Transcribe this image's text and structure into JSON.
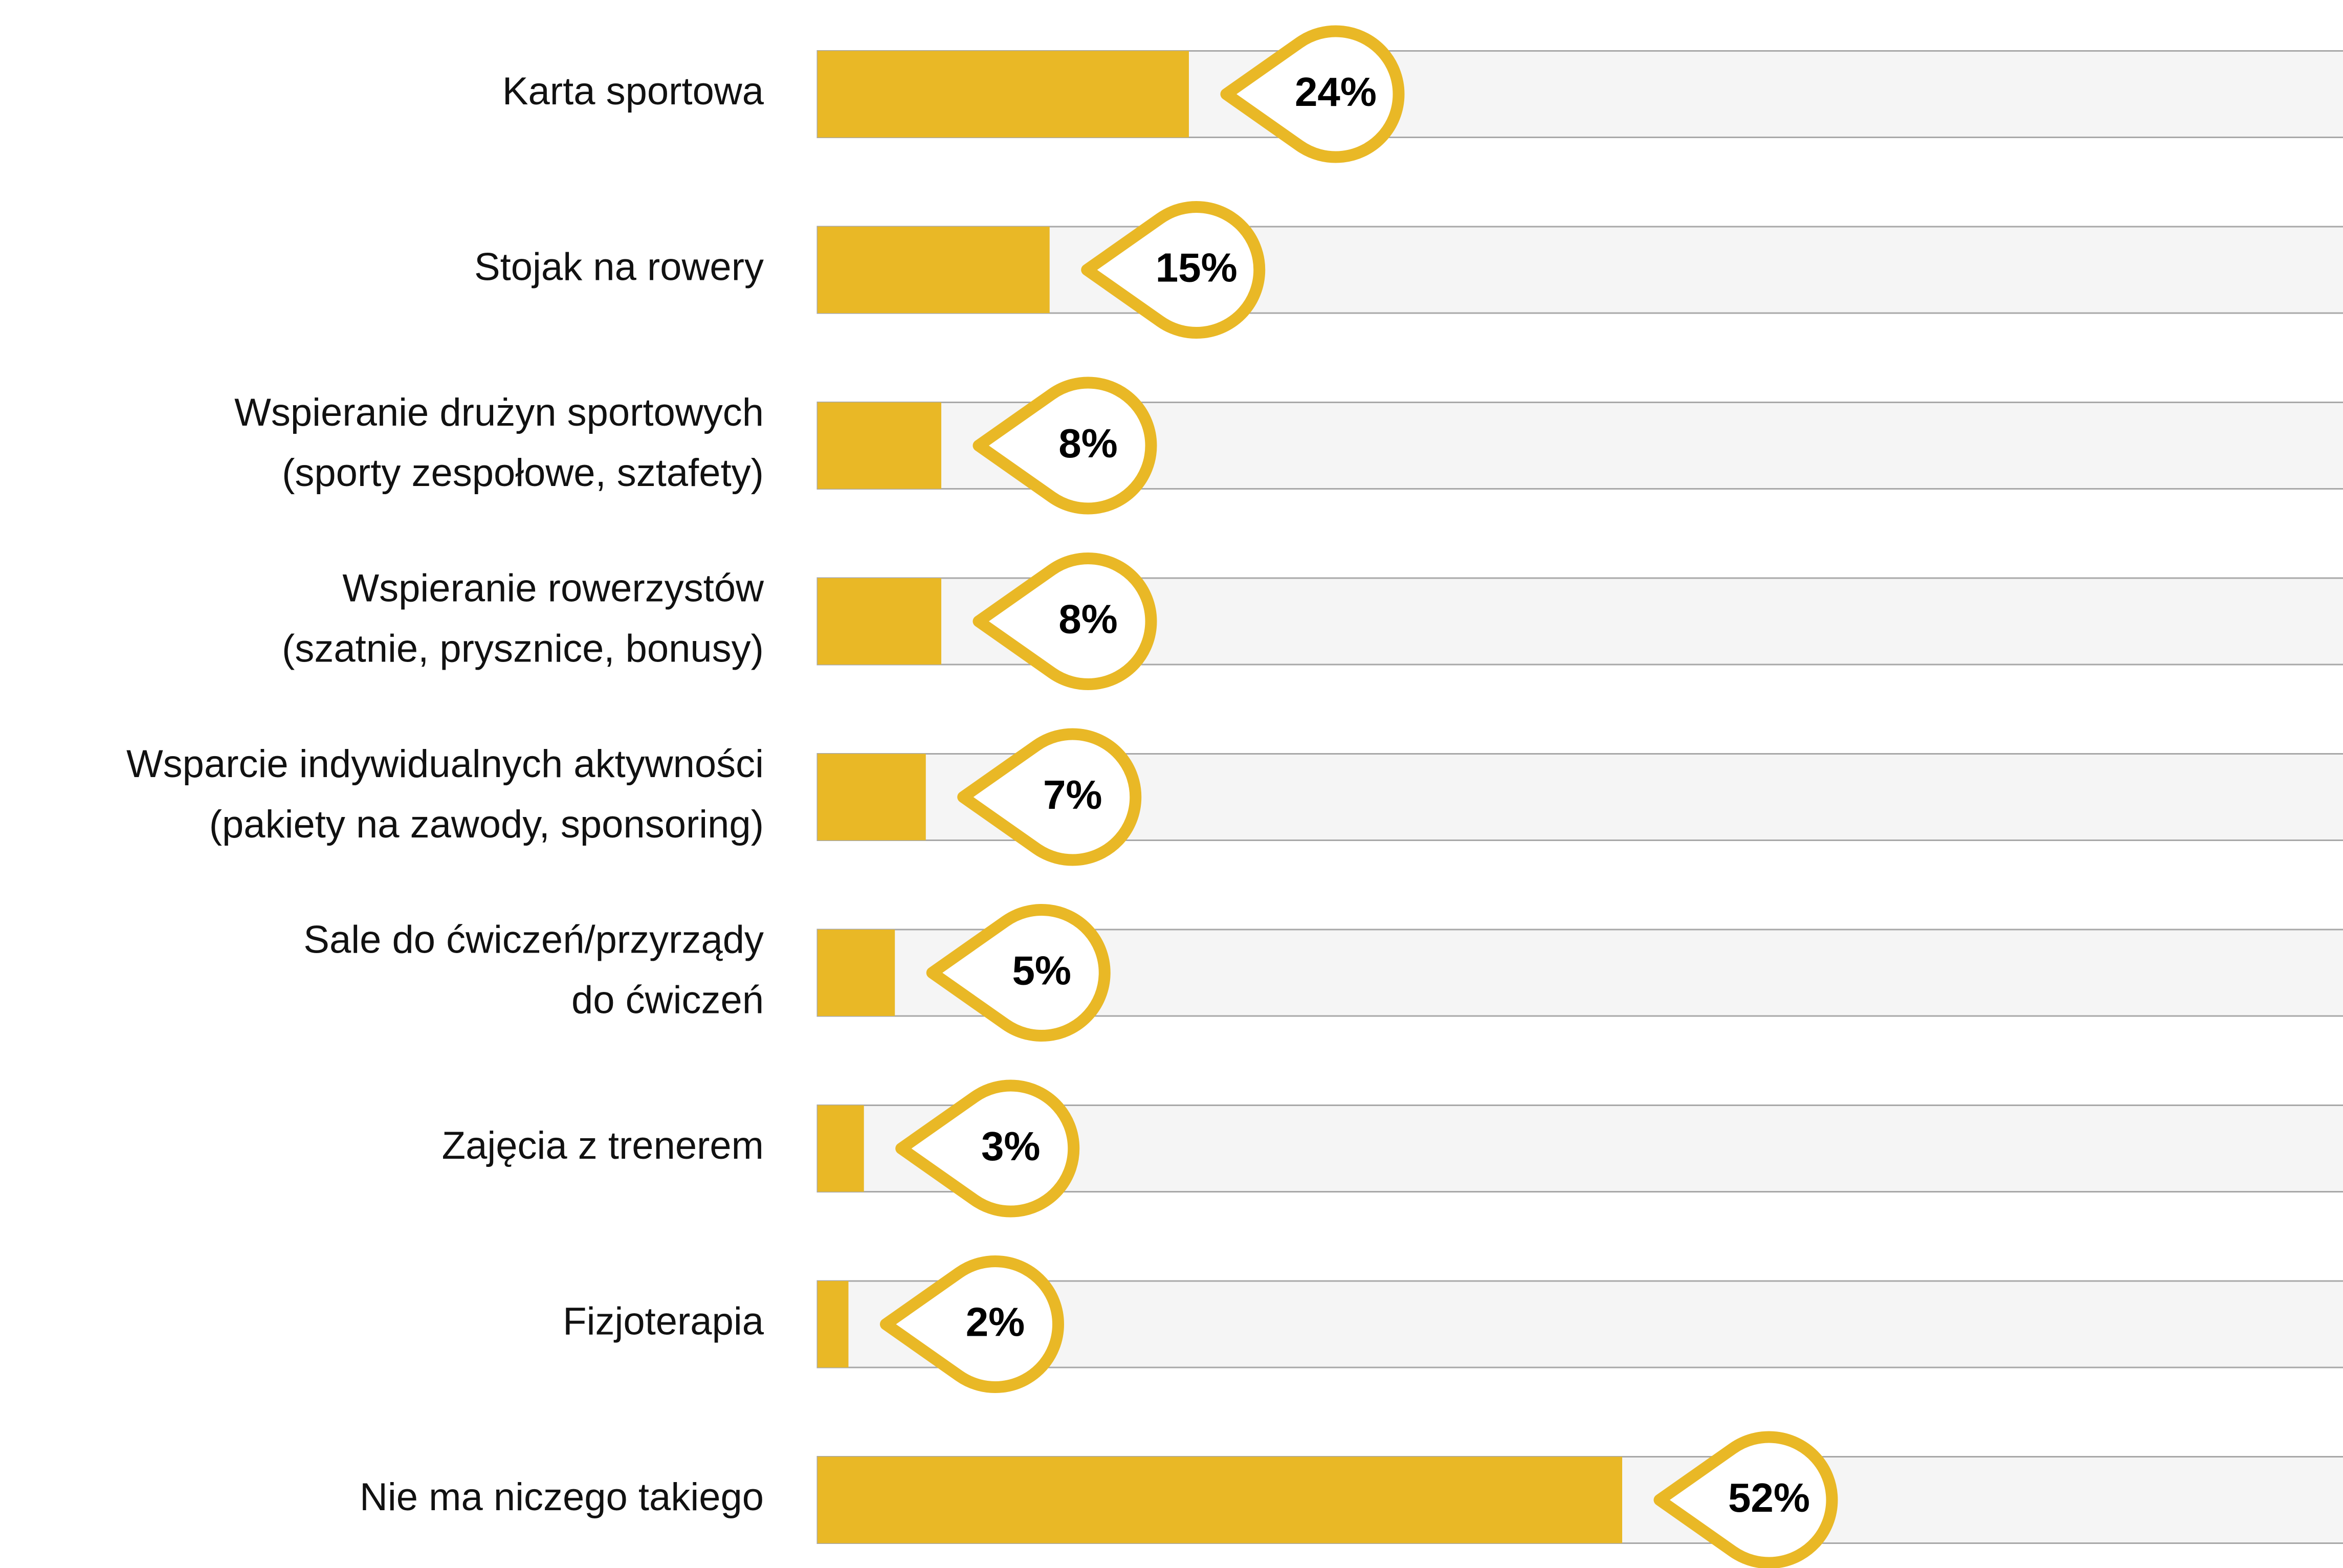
{
  "chart_data": {
    "type": "bar",
    "orientation": "horizontal",
    "categories": [
      "Karta sportowa",
      "Stojak na rowery",
      "Wspieranie drużyn sportowych\n(sporty zespołowe, sztafety)",
      "Wspieranie rowerzystów\n(szatnie, prysznice, bonusy)",
      "Wsparcie indywidualnych aktywności\n(pakiety na zawody, sponsoring)",
      "Sale do ćwiczeń/przyrządy\ndo ćwiczeń",
      "Zajęcia z trenerem",
      "Fizjoterapia",
      "Nie ma niczego takiego"
    ],
    "values": [
      24,
      15,
      8,
      8,
      7,
      5,
      3,
      2,
      52
    ],
    "value_labels": [
      "24%",
      "15%",
      "8%",
      "8%",
      "7%",
      "5%",
      "3%",
      "2%",
      "52%"
    ],
    "color": "#e9b826",
    "xlim": [
      0,
      100
    ]
  }
}
